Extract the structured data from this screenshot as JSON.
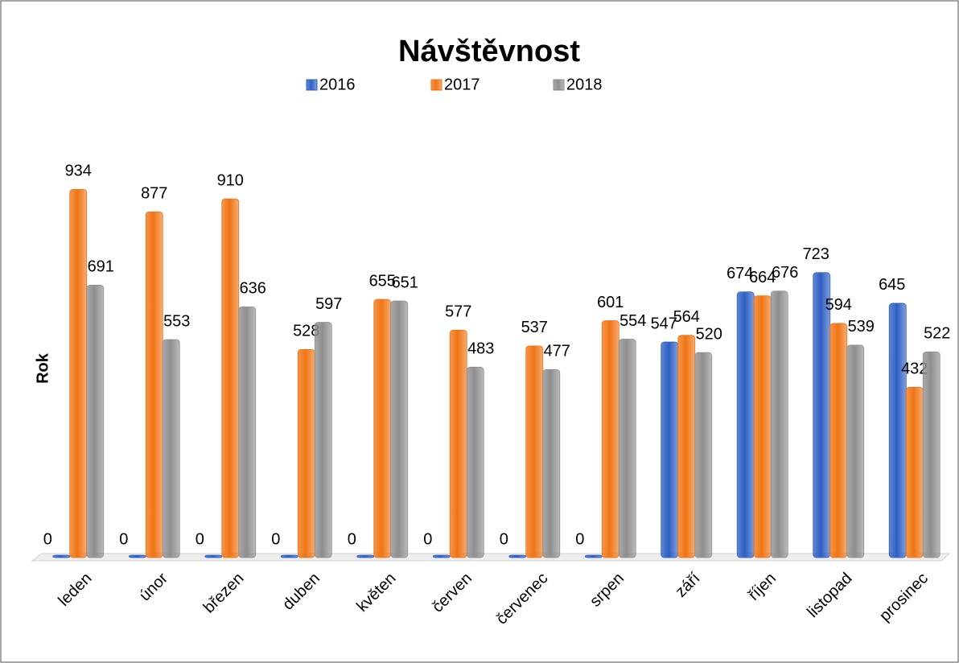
{
  "chart_data": {
    "type": "bar",
    "title": "Návštěvnost",
    "y_label": "Rok",
    "categories": [
      "leden",
      "únor",
      "březen",
      "duben",
      "květen",
      "červen",
      "červenec",
      "srpen",
      "září",
      "říjen",
      "listopad",
      "prosinec"
    ],
    "series": [
      {
        "name": "2016",
        "color": "#2e5fc4",
        "values": [
          0,
          0,
          0,
          0,
          0,
          0,
          0,
          0,
          547,
          674,
          723,
          645
        ]
      },
      {
        "name": "2017",
        "color": "#f07414",
        "values": [
          934,
          877,
          910,
          528,
          655,
          577,
          537,
          601,
          564,
          664,
          594,
          432
        ]
      },
      {
        "name": "2018",
        "color": "#8e8e8e",
        "values": [
          691,
          553,
          636,
          597,
          651,
          483,
          477,
          554,
          520,
          676,
          539,
          522
        ]
      }
    ],
    "ylim": [
      0,
      1000
    ],
    "legend": "top"
  }
}
